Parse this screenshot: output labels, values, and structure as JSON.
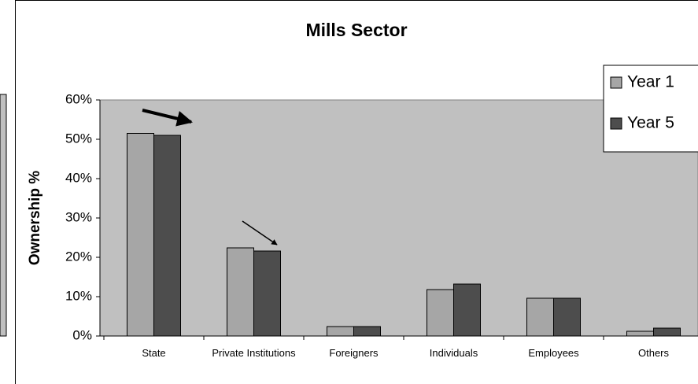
{
  "chart_data": {
    "type": "bar",
    "title": "Mills Sector",
    "y_label": "Ownership %",
    "categories": [
      "State",
      "Private Institutions",
      "Foreigners",
      "Individuals",
      "Employees",
      "Others"
    ],
    "series": [
      {
        "name": "Year 1",
        "color": "#a6a6a6",
        "values": [
          51.5,
          22.4,
          2.4,
          11.8,
          9.6,
          1.2
        ]
      },
      {
        "name": "Year 5",
        "color": "#4d4d4d",
        "values": [
          51,
          21.6,
          2.4,
          13.2,
          9.6,
          2
        ]
      }
    ],
    "ylim": [
      0,
      60
    ],
    "yticks": [
      {
        "value": 0,
        "label": "0%"
      },
      {
        "value": 10,
        "label": "10%"
      },
      {
        "value": 20,
        "label": "20%"
      },
      {
        "value": 30,
        "label": "30%"
      },
      {
        "value": 40,
        "label": "40%"
      },
      {
        "value": 50,
        "label": "50%"
      },
      {
        "value": 60,
        "label": "60%"
      }
    ],
    "legend": "top-right",
    "plot_background": "#c0c0c0"
  }
}
